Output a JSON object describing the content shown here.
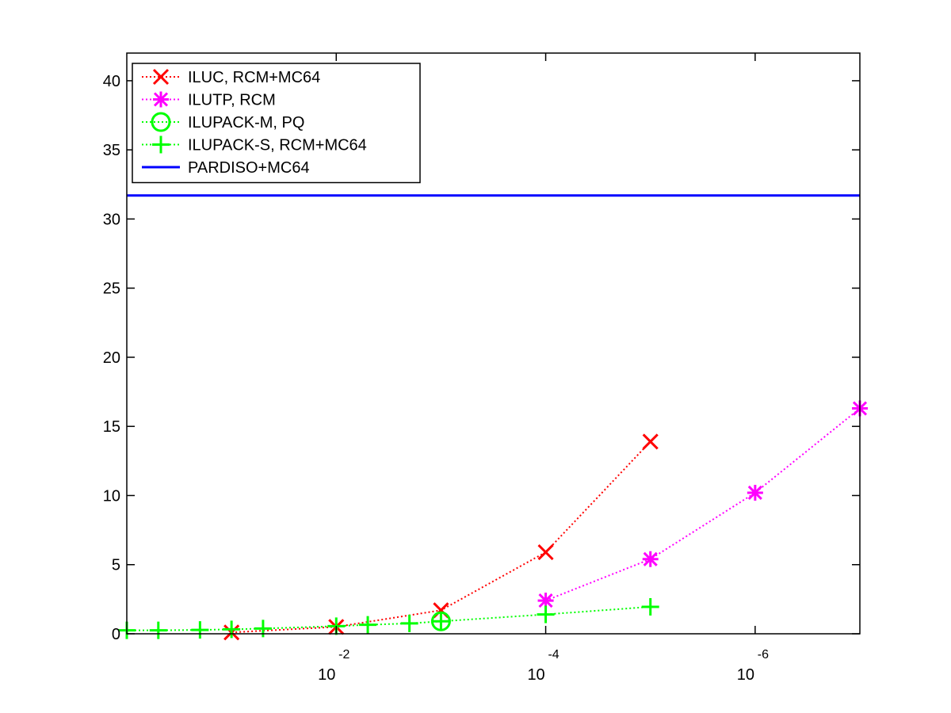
{
  "chart_data": {
    "type": "line",
    "title": "",
    "xlabel": "",
    "ylabel": "",
    "x_scale": "log-reversed",
    "xlim": [
      1,
      1e-07
    ],
    "ylim": [
      0,
      42
    ],
    "y_ticks": [
      0,
      5,
      10,
      15,
      20,
      25,
      30,
      35,
      40
    ],
    "x_ticks": [
      {
        "value": 0.01,
        "base": "10",
        "exponent": "-2"
      },
      {
        "value": 0.0001,
        "base": "10",
        "exponent": "-4"
      },
      {
        "value": 1e-06,
        "base": "10",
        "exponent": "-6"
      }
    ],
    "grid": false,
    "legend_position": "top-left",
    "series": [
      {
        "name": "ILUC, RCM+MC64",
        "color": "#ff0000",
        "marker": "x",
        "line_style": "dotted",
        "points": [
          {
            "x": 0.1,
            "y": 0.1
          },
          {
            "x": 0.01,
            "y": 0.5
          },
          {
            "x": 0.001,
            "y": 1.7
          },
          {
            "x": 0.0001,
            "y": 5.9
          },
          {
            "x": 1e-05,
            "y": 13.9
          }
        ]
      },
      {
        "name": "ILUTP, RCM",
        "color": "#ff00ff",
        "marker": "star",
        "line_style": "dotted",
        "points": [
          {
            "x": 0.0001,
            "y": 2.4
          },
          {
            "x": 1e-05,
            "y": 5.4
          },
          {
            "x": 1e-06,
            "y": 10.2
          },
          {
            "x": 1e-07,
            "y": 16.3
          }
        ]
      },
      {
        "name": "ILUPACK-M, PQ",
        "color": "#00ff00",
        "marker": "circle",
        "line_style": "dotted",
        "points": [
          {
            "x": 0.001,
            "y": 0.9
          }
        ]
      },
      {
        "name": "ILUPACK-S, RCM+MC64",
        "color": "#00ff00",
        "marker": "plus",
        "line_style": "dotted",
        "points": [
          {
            "x": 1,
            "y": 0.25
          },
          {
            "x": 0.5,
            "y": 0.25
          },
          {
            "x": 0.2,
            "y": 0.28
          },
          {
            "x": 0.1,
            "y": 0.32
          },
          {
            "x": 0.05,
            "y": 0.38
          },
          {
            "x": 0.01,
            "y": 0.55
          },
          {
            "x": 0.005,
            "y": 0.65
          },
          {
            "x": 0.002,
            "y": 0.75
          },
          {
            "x": 0.001,
            "y": 0.9
          },
          {
            "x": 0.0001,
            "y": 1.4
          },
          {
            "x": 1e-05,
            "y": 1.95
          }
        ]
      },
      {
        "name": "PARDISO+MC64",
        "color": "#0000ff",
        "marker": "none",
        "line_style": "solid",
        "points": [
          {
            "x": 1,
            "y": 31.7
          },
          {
            "x": 1e-07,
            "y": 31.7
          }
        ]
      }
    ]
  }
}
